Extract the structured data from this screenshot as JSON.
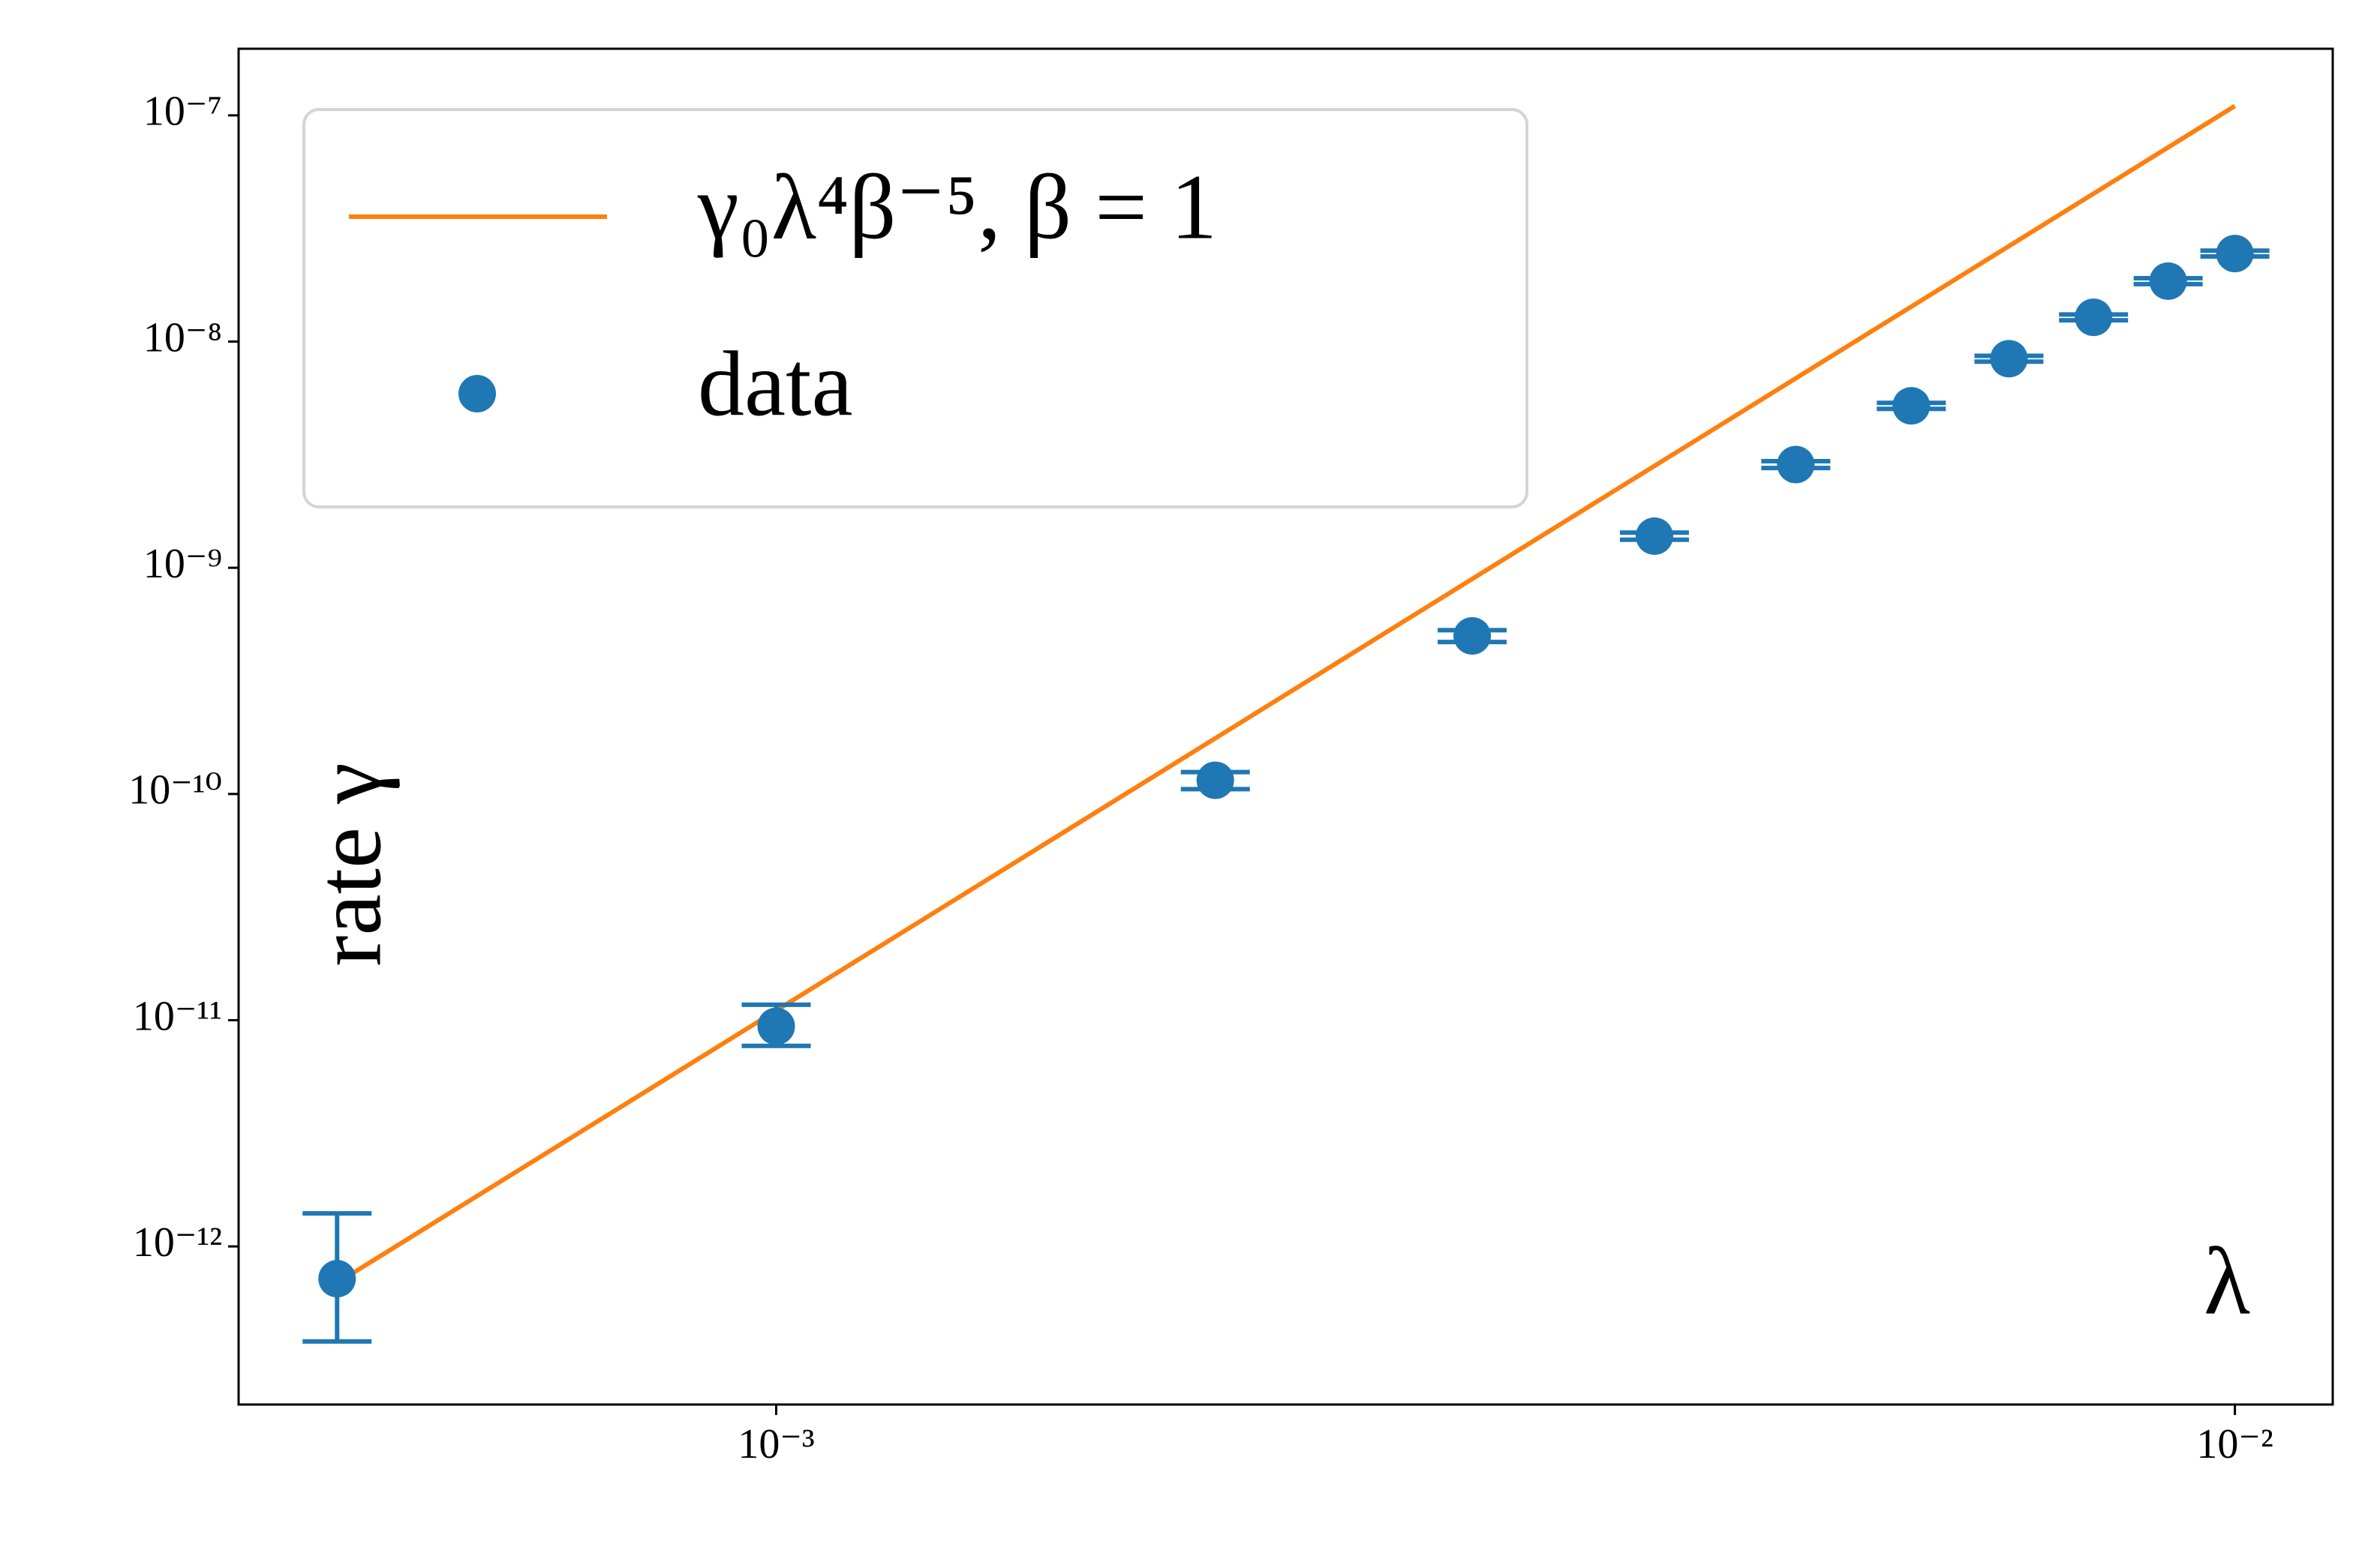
{
  "chart_data": {
    "type": "line",
    "xlabel": "λ",
    "ylabel": "rate γ",
    "xscale": "log",
    "yscale": "log",
    "xlim": [
      0.000428,
      0.01167
    ],
    "ylim": [
      2e-13,
      1.97e-07
    ],
    "xticks": [
      {
        "value": 0.001,
        "label": "10⁻³"
      },
      {
        "value": 0.01,
        "label": "10⁻²"
      }
    ],
    "yticks": [
      {
        "value": 1e-12,
        "label": "10⁻¹²"
      },
      {
        "value": 1e-11,
        "label": "10⁻¹¹"
      },
      {
        "value": 1e-10,
        "label": "10⁻¹⁰"
      },
      {
        "value": 1e-09,
        "label": "10⁻⁹"
      },
      {
        "value": 1e-08,
        "label": "10⁻⁸"
      },
      {
        "value": 1e-07,
        "label": "10⁻⁷"
      }
    ],
    "legend": "upper left",
    "series": [
      {
        "name": "γ₀λ⁴β⁻⁵, β = 1",
        "type": "line",
        "color": "#ff7f0e",
        "x": [
          0.0005,
          0.01
        ],
        "values": [
          6.9e-13,
          1.1e-07
        ]
      },
      {
        "name": "data",
        "type": "errorbar",
        "color": "#1f77b4",
        "x": [
          0.0005,
          0.001,
          0.002,
          0.003,
          0.004,
          0.005,
          0.006,
          0.007,
          0.008,
          0.009,
          0.01
        ],
        "values": [
          7.2e-13,
          9.4e-12,
          1.15e-10,
          5e-10,
          1.38e-09,
          2.86e-09,
          5.2e-09,
          8.4e-09,
          1.28e-08,
          1.85e-08,
          2.45e-08
        ],
        "err_lower": [
          3.4e-13,
          1.7e-12,
          1e-11,
          3e-11,
          5e-11,
          1e-10,
          1.6e-10,
          2.5e-10,
          3.8e-10,
          5.5e-10,
          7.3e-10
        ],
        "err_upper": [
          6.8e-13,
          2.3e-12,
          1e-11,
          3e-11,
          5e-11,
          1e-10,
          1.6e-10,
          2.5e-10,
          3.8e-10,
          5.5e-10,
          7.3e-10
        ]
      }
    ]
  }
}
